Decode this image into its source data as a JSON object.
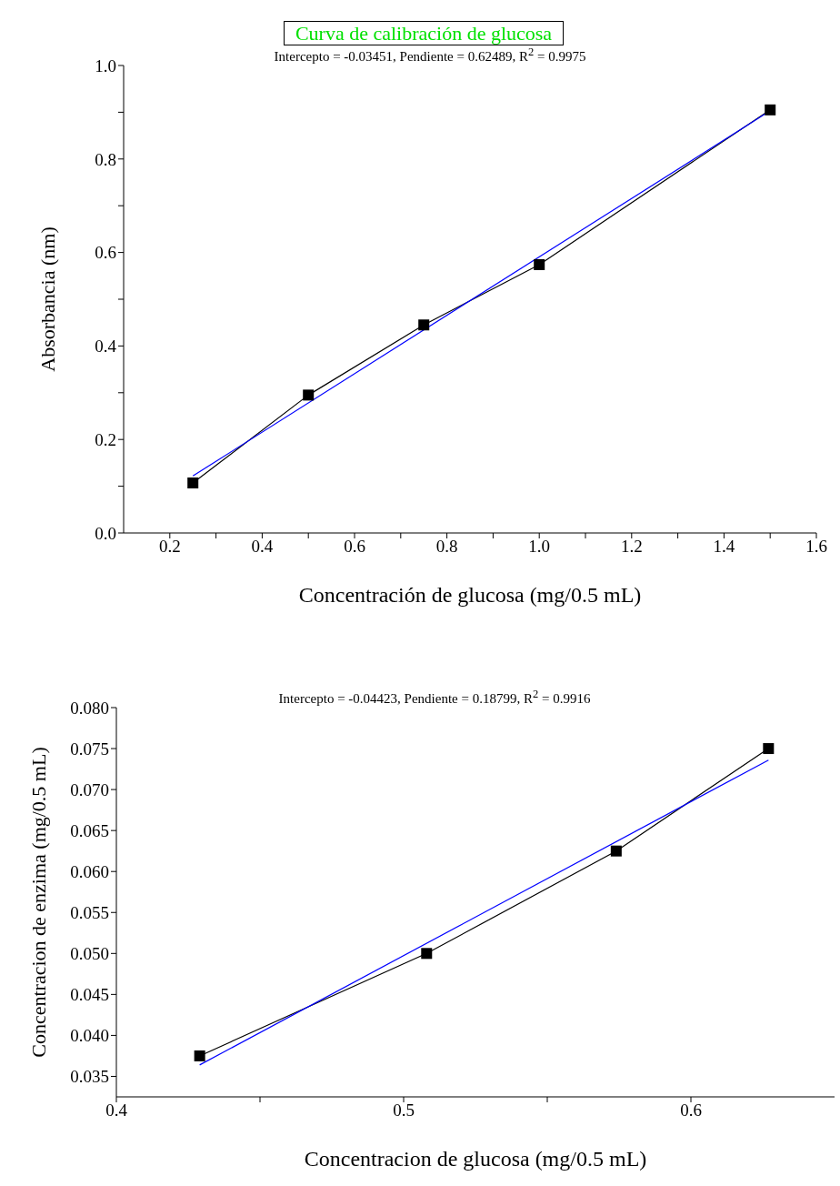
{
  "chart_data": [
    {
      "type": "line",
      "title": "Curva de calibración de glucosa",
      "annotations": [
        "Intercepto = -0.03451, Pendiente = 0.62489, R$^{2}$ = 0.9975"
      ],
      "xlabel": "Concentración de glucosa (mg/0.5 mL)",
      "ylabel": "Absorbancia (nm)",
      "xlim": [
        0.1,
        1.6
      ],
      "xticks": [
        0.2,
        {
          "value": 0.3,
          "label": null
        },
        0.4,
        {
          "value": 0.5,
          "label": null
        },
        0.6,
        {
          "value": 0.7,
          "label": null
        },
        0.8,
        {
          "value": 0.9,
          "label": null
        },
        {
          "value": 1,
          "label": "1.0"
        },
        {
          "value": 1.1,
          "label": null
        },
        1.2,
        {
          "value": 1.3,
          "label": null
        },
        1.4,
        {
          "value": 1.5,
          "label": null
        },
        1.6
      ],
      "ylim": [
        0,
        1
      ],
      "yticks": [
        {
          "value": 0,
          "label": "0.0"
        },
        {
          "value": 0.1,
          "label": null
        },
        0.2,
        {
          "value": 0.3,
          "label": null
        },
        0.4,
        {
          "value": 0.5,
          "label": null
        },
        0.6,
        {
          "value": 0.7,
          "label": null
        },
        0.8,
        {
          "value": 0.9,
          "label": null
        },
        {
          "value": 1,
          "label": "1.0"
        }
      ],
      "series": [
        {
          "x": [
            0.25,
            0.5,
            0.75,
            1.0,
            1.5
          ],
          "values": [
            0.107,
            0.295,
            0.445,
            0.574,
            0.905
          ],
          "color": "#000000",
          "marker": "square"
        },
        {
          "x": [
            0.25,
            1.5
          ],
          "values": [
            0.122,
            0.903
          ],
          "color": "#0000ff",
          "marker": "none"
        }
      ]
    },
    {
      "type": "line",
      "annotations": [
        "Intercepto = -0.04423, Pendiente = 0.18799, R$^{2}$ = 0.9916"
      ],
      "xlabel": "Concentracion de glucosa (mg/0.5 mL)",
      "ylabel": "Concentracion de enzima (mg/0.5 mL)",
      "xlim": [
        0.4,
        0.65
      ],
      "xticks": [
        0.4,
        {
          "value": 0.45,
          "label": null
        },
        0.5,
        {
          "value": 0.55,
          "label": null
        },
        0.6
      ],
      "ylim": [
        0.0325,
        0.08
      ],
      "yticks": [
        {
          "value": 0.035,
          "label": "0.035"
        },
        {
          "value": 0.04,
          "label": "0.040"
        },
        {
          "value": 0.045,
          "label": "0.045"
        },
        {
          "value": 0.05,
          "label": "0.050"
        },
        {
          "value": 0.055,
          "label": "0.055"
        },
        {
          "value": 0.06,
          "label": "0.060"
        },
        {
          "value": 0.065,
          "label": "0.065"
        },
        {
          "value": 0.07,
          "label": "0.070"
        },
        {
          "value": 0.075,
          "label": "0.075"
        },
        {
          "value": 0.08,
          "label": "0.080"
        }
      ],
      "series": [
        {
          "x": [
            0.429,
            0.508,
            0.574,
            0.627
          ],
          "values": [
            0.0375,
            0.05,
            0.0625,
            0.075
          ],
          "color": "#000000",
          "marker": "square"
        },
        {
          "x": [
            0.429,
            0.627
          ],
          "values": [
            0.0364,
            0.0736
          ],
          "color": "#0000ff",
          "marker": "none"
        }
      ]
    }
  ]
}
